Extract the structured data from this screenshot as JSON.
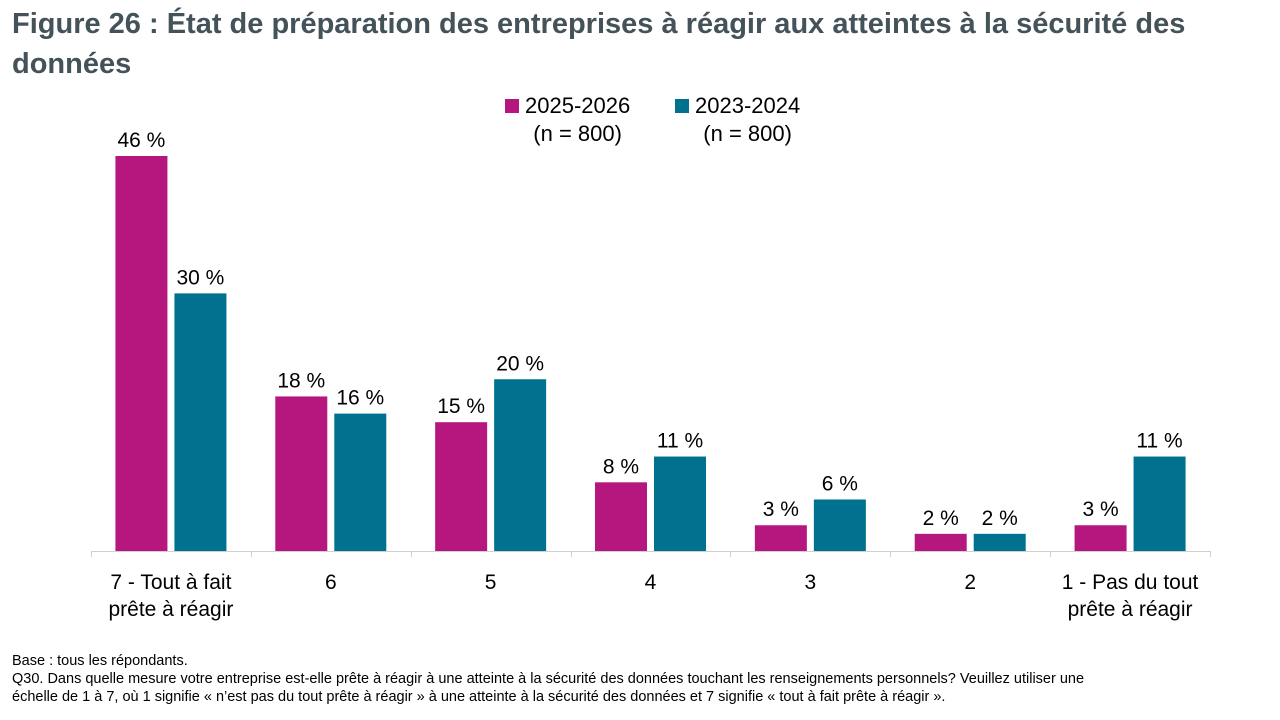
{
  "title": "Figure 26 : État de préparation des entreprises à réagir aux atteintes à la sécurité des données",
  "legend": [
    {
      "label": "2025-2026",
      "sub": "(n = 800)",
      "color": "#b5177f"
    },
    {
      "label": "2023-2024",
      "sub": "(n = 800)",
      "color": "#00728f"
    }
  ],
  "chart_data": {
    "type": "bar",
    "title": "Figure 26 : État de préparation des entreprises à réagir aux atteintes à la sécurité des données",
    "categories": [
      "7 - Tout à fait prête à réagir",
      "6",
      "5",
      "4",
      "3",
      "2",
      "1 - Pas du tout prête à réagir"
    ],
    "series": [
      {
        "name": "2025-2026 (n = 800)",
        "values": [
          46,
          18,
          15,
          8,
          3,
          2,
          3
        ],
        "color": "#b5177f"
      },
      {
        "name": "2023-2024 (n = 800)",
        "values": [
          30,
          16,
          20,
          11,
          6,
          2,
          11
        ],
        "color": "#00728f"
      }
    ],
    "data_labels": [
      [
        "46 %",
        "18 %",
        "15 %",
        "8 %",
        "3 %",
        "2 %",
        "3 %"
      ],
      [
        "30 %",
        "16 %",
        "20 %",
        "11 %",
        "6 %",
        "2 %",
        "11 %"
      ]
    ],
    "category_lines": [
      [
        "7 - Tout à fait",
        "prête à réagir"
      ],
      [
        "6"
      ],
      [
        "5"
      ],
      [
        "4"
      ],
      [
        "3"
      ],
      [
        "2"
      ],
      [
        "1 - Pas du tout",
        "prête à réagir"
      ]
    ],
    "xlabel": "",
    "ylabel": "",
    "ylim": [
      0,
      46
    ],
    "grid": false,
    "legend_position": "top-center"
  },
  "footnote": {
    "base": "Base : tous les répondants.",
    "question_line1": "Q30. Dans quelle mesure votre entreprise est-elle prête à réagir à une atteinte à la sécurité des données touchant les renseignements personnels? Veuillez utiliser une",
    "question_line2": "échelle de 1 à 7, où 1 signifie « n’est pas du tout prête à réagir » à une atteinte à la sécurité des données et 7 signifie « tout à fait prête à réagir »."
  }
}
